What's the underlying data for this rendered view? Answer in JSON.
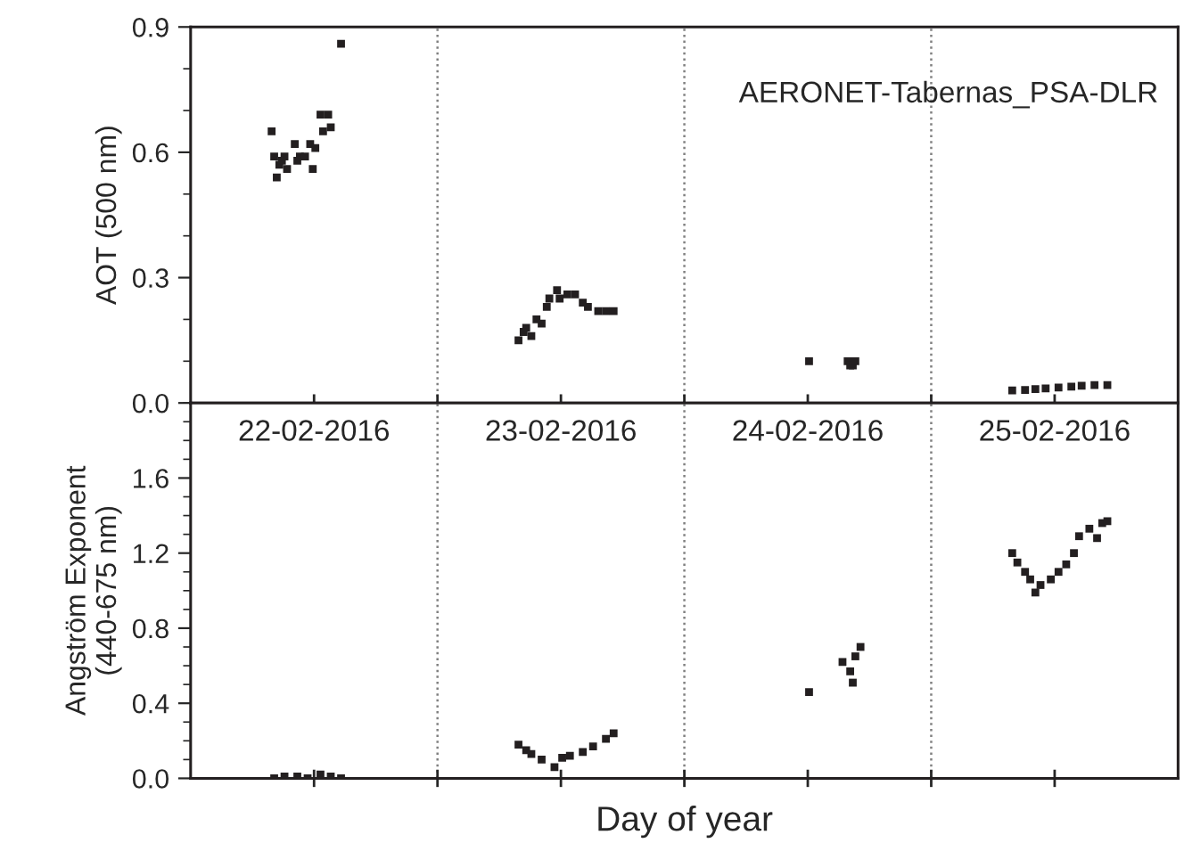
{
  "chart_data": [
    {
      "type": "scatter",
      "ylabel": "AOT (500 nm)",
      "annotations": [
        "AERONET-Tabernas_PSA-DLR"
      ],
      "categories": [
        null,
        null,
        null,
        null,
        null,
        null,
        null,
        null,
        null,
        null,
        null,
        null,
        null,
        null,
        null,
        null,
        null,
        null,
        null,
        null,
        null,
        null,
        null,
        null,
        null,
        null,
        null,
        null,
        null,
        null,
        null,
        null,
        null,
        null,
        null,
        null,
        null,
        null,
        null,
        null,
        null,
        null,
        null,
        null,
        null,
        null,
        null,
        null,
        null,
        null,
        null,
        null,
        null,
        null,
        null,
        null,
        null,
        null,
        null,
        null,
        null,
        null,
        null,
        null,
        null,
        null,
        null,
        null,
        null,
        null,
        null,
        null,
        null,
        null,
        null,
        null,
        null,
        null,
        null,
        null,
        null,
        null,
        null,
        null,
        null,
        null,
        null,
        null,
        null,
        null,
        null,
        null,
        null,
        null,
        null,
        null,
        null,
        null,
        null,
        null,
        null,
        null,
        null,
        null,
        null,
        null,
        null,
        null,
        null,
        null,
        null,
        null,
        null,
        null,
        null,
        null,
        null,
        null,
        null,
        null,
        null,
        null,
        null,
        null,
        null,
        null,
        null,
        null,
        null,
        null,
        null,
        null,
        null,
        null,
        null,
        null,
        null,
        null,
        null,
        null,
        null,
        null,
        null,
        null,
        null,
        null,
        null,
        null,
        null,
        null,
        null,
        null,
        null,
        null,
        null,
        null,
        null,
        null,
        null,
        null,
        null,
        null,
        null,
        null,
        null,
        null,
        null,
        null,
        null,
        null,
        null,
        null,
        null,
        null,
        null,
        null,
        null,
        null,
        null,
        null,
        null,
        null,
        null,
        null,
        null,
        null,
        null,
        null,
        null,
        null,
        null,
        null,
        null,
        null,
        null,
        null,
        null,
        null,
        null,
        null,
        null,
        null,
        null,
        null,
        null,
        null,
        null,
        null,
        null,
        null,
        null,
        null,
        null,
        null,
        null,
        null,
        null,
        null,
        null,
        null,
        null,
        null,
        null,
        null,
        null,
        null,
        null,
        null,
        null,
        null,
        null,
        null,
        null,
        null,
        null,
        null,
        null,
        null,
        null,
        null,
        null,
        null,
        null,
        null,
        null,
        null,
        null,
        null,
        null,
        null,
        null,
        null,
        null,
        null,
        null,
        null,
        null,
        null,
        null,
        null,
        null,
        null,
        null,
        null,
        null,
        null,
        null,
        null,
        null,
        null,
        null,
        null,
        null,
        null,
        null,
        null,
        null,
        null,
        null,
        null,
        null,
        null,
        null,
        null,
        null,
        null,
        null,
        null,
        null,
        null,
        null,
        null,
        null,
        null,
        null,
        null,
        null,
        null,
        null,
        null,
        null,
        null,
        null,
        null,
        null,
        null,
        null,
        null,
        null,
        null,
        null,
        null,
        null,
        null,
        null,
        null,
        null,
        null,
        null,
        null,
        null,
        null,
        null,
        null,
        null,
        null,
        null,
        null,
        null,
        null,
        null,
        null,
        null,
        null,
        null,
        null,
        null,
        null,
        null,
        null,
        null,
        null,
        null,
        null,
        null,
        null,
        null,
        null,
        null,
        null,
        null,
        null,
        null,
        null,
        null,
        null,
        null,
        null,
        null,
        null,
        null,
        null,
        null,
        null,
        null,
        null,
        null,
        null,
        null,
        null,
        null,
        null,
        null,
        null,
        null,
        null,
        null,
        null,
        null,
        null,
        null,
        null,
        null,
        null
      ],
      "ylim": [
        0,
        0.9
      ],
      "yticks": [
        {
          "value": 0,
          "label": "0.0"
        },
        0.3,
        0.6,
        0.9
      ],
      "tick_labels": "y",
      "marker": "square",
      "grid": false,
      "series": [
        {
          "color": "#231f20",
          "values": [
            null,
            null,
            null,
            null,
            null,
            null,
            null,
            null,
            null,
            null,
            null,
            null,
            null,
            null,
            null,
            null,
            null,
            null,
            null,
            null,
            null,
            null,
            null,
            null,
            null,
            null,
            null,
            null,
            null,
            null,
            null,
            0.65,
            0.59,
            0.54,
            0.57,
            0.58,
            0.59,
            0.56,
            null,
            null,
            0.62,
            0.58,
            0.59,
            null,
            0.59,
            null,
            0.62,
            0.56,
            0.61,
            null,
            0.69,
            0.65,
            null,
            0.69,
            0.66,
            null,
            null,
            null,
            0.86,
            null,
            null,
            null,
            null,
            null,
            null,
            null,
            null,
            null,
            null,
            null,
            null,
            null,
            null,
            null,
            null,
            null,
            null,
            null,
            null,
            null,
            null,
            null,
            null,
            null,
            null,
            null,
            null,
            null,
            null,
            null,
            null,
            null,
            null,
            null,
            null,
            null,
            null,
            null,
            null,
            null,
            null,
            null,
            null,
            null,
            null,
            null,
            null,
            null,
            null,
            null,
            null,
            null,
            null,
            null,
            null,
            null,
            null,
            null,
            null,
            null,
            null,
            null,
            null,
            null,
            null,
            null,
            null,
            0.15,
            null,
            0.17,
            0.18,
            null,
            0.16,
            null,
            0.2,
            null,
            0.19,
            null,
            0.23,
            0.25,
            null,
            null,
            0.27,
            0.25,
            null,
            null,
            0.26,
            null,
            null,
            0.26,
            null,
            null,
            0.24,
            null,
            0.23,
            null,
            null,
            null,
            0.22,
            null,
            null,
            0.22,
            null,
            null,
            0.22,
            null,
            null,
            null,
            null,
            null,
            null,
            null,
            null,
            null,
            null,
            null,
            null,
            null,
            null,
            null,
            null,
            null,
            null,
            null,
            null,
            null,
            null,
            null,
            null,
            null,
            null,
            null,
            null,
            null,
            null,
            null,
            null,
            null,
            null,
            null,
            null,
            null,
            null,
            null,
            null,
            null,
            null,
            null,
            null,
            null,
            null,
            null,
            null,
            null,
            null,
            null,
            null,
            null,
            null,
            null,
            null,
            null,
            null,
            null,
            null,
            null,
            null,
            null,
            null,
            null,
            null,
            null,
            null,
            null,
            null,
            null,
            null,
            null,
            null,
            null,
            0.1,
            null,
            null,
            null,
            null,
            null,
            null,
            null,
            null,
            null,
            null,
            null,
            null,
            null,
            null,
            0.1,
            0.09,
            0.09,
            0.1,
            null,
            null,
            null,
            null,
            null,
            null,
            null,
            null,
            null,
            null,
            null,
            null,
            null,
            null,
            null,
            null,
            null,
            null,
            null,
            null,
            null,
            null,
            null,
            null,
            null,
            null,
            null,
            null,
            null,
            null,
            null,
            null,
            null,
            null,
            null,
            null,
            null,
            null,
            null,
            null,
            null,
            null,
            null,
            null,
            null,
            null,
            null,
            null,
            null,
            null,
            null,
            null,
            null,
            null,
            null,
            null,
            null,
            null,
            null,
            null,
            0.03,
            null,
            null,
            null,
            null,
            0.031,
            null,
            null,
            null,
            0.033,
            null,
            null,
            null,
            0.035,
            null,
            null,
            null,
            null,
            0.037,
            null,
            null,
            null,
            null,
            0.039,
            null,
            null,
            null,
            0.041,
            null,
            null,
            null,
            null,
            0.043,
            null,
            null,
            null,
            null,
            0.043,
            null,
            null,
            null,
            null,
            null,
            null,
            null,
            null,
            null,
            null,
            null,
            null,
            null,
            null,
            null,
            null,
            null,
            null,
            null,
            null,
            null,
            null,
            null,
            null,
            null,
            null,
            null
          ]
        }
      ]
    },
    {
      "type": "scatter",
      "xlabel": "Day of year",
      "ylabel": "Angström Exponent\n(440-675 nm)",
      "annotations": [
        "22-02-2016",
        "23-02-2016",
        "24-02-2016",
        "25-02-2016"
      ],
      "categories": [
        null,
        null,
        null,
        null,
        null,
        null,
        null,
        null,
        null,
        null,
        null,
        null,
        null,
        null,
        null,
        null,
        null,
        null,
        null,
        null,
        null,
        null,
        null,
        null,
        null,
        null,
        null,
        null,
        null,
        null,
        null,
        null,
        null,
        null,
        null,
        null,
        null,
        null,
        null,
        null,
        null,
        null,
        null,
        null,
        null,
        null,
        null,
        null,
        null,
        null,
        null,
        null,
        null,
        null,
        null,
        null,
        null,
        null,
        null,
        null,
        null,
        null,
        null,
        null,
        null,
        null,
        null,
        null,
        null,
        null,
        null,
        null,
        null,
        null,
        null,
        null,
        null,
        null,
        null,
        null,
        null,
        null,
        null,
        null,
        null,
        null,
        null,
        null,
        null,
        null,
        null,
        null,
        null,
        null,
        null,
        null,
        null,
        null,
        null,
        null,
        null,
        null,
        null,
        null,
        null,
        null,
        null,
        null,
        null,
        null,
        null,
        null,
        null,
        null,
        null,
        null,
        null,
        null,
        null,
        null,
        null,
        null,
        null,
        null,
        null,
        null,
        null,
        null,
        null,
        null,
        null,
        null,
        null,
        null,
        null,
        null,
        null,
        null,
        null,
        null,
        null,
        null,
        null,
        null,
        null,
        null,
        null,
        null,
        null,
        null,
        null,
        null,
        null,
        null,
        null,
        null,
        null,
        null,
        null,
        null,
        null,
        null,
        null,
        null,
        null,
        null,
        null,
        null,
        null,
        null,
        null,
        null,
        null,
        null,
        null,
        null,
        null,
        null,
        null,
        null,
        null,
        null,
        null,
        null,
        null,
        null,
        null,
        null,
        null,
        null,
        null,
        null,
        null,
        null,
        null,
        null,
        null,
        null,
        null,
        null,
        null,
        null,
        null,
        null,
        null,
        null,
        null,
        null,
        null,
        null,
        null,
        null,
        null,
        null,
        null,
        null,
        null,
        null,
        null,
        null,
        null,
        null,
        null,
        null,
        null,
        null,
        null,
        null,
        null,
        null,
        null,
        null,
        null,
        null,
        null,
        null,
        null,
        null,
        null,
        null,
        null,
        null,
        null,
        null,
        null,
        null,
        null,
        null,
        null,
        null,
        null,
        null,
        null,
        null,
        null,
        null,
        null,
        null,
        null,
        null,
        null,
        null,
        null,
        null,
        null,
        null,
        null,
        null,
        null,
        null,
        null,
        null,
        null,
        null,
        null,
        null,
        null,
        null,
        null,
        null,
        null,
        null,
        null,
        null,
        null,
        null,
        null,
        null,
        null,
        null,
        null,
        null,
        null,
        null,
        null,
        null,
        null,
        null,
        null,
        null,
        null,
        null,
        null,
        null,
        null,
        null,
        null,
        null,
        null,
        null,
        null,
        null,
        null,
        null,
        null,
        null,
        null,
        null,
        null,
        null,
        null,
        null,
        null,
        null,
        null,
        null,
        null,
        null,
        null,
        null,
        null,
        null,
        null,
        null,
        null,
        null,
        null,
        null,
        null,
        null,
        null,
        null,
        null,
        null,
        null,
        null,
        null,
        null,
        null,
        null,
        null,
        null,
        null,
        null,
        null,
        null,
        null,
        null,
        null,
        null,
        null,
        null,
        null,
        null,
        null,
        null,
        null,
        null,
        null,
        null,
        null,
        null,
        null,
        null,
        null,
        null,
        null,
        null,
        null,
        null,
        null,
        null,
        null,
        null
      ],
      "ylim": [
        0,
        2.0
      ],
      "yticks": [
        {
          "value": 0,
          "label": "0.0"
        },
        0.4,
        0.8,
        1.2,
        1.6
      ],
      "tick_labels": "y",
      "marker": "square",
      "grid": false,
      "series": [
        {
          "color": "#231f20",
          "values": [
            null,
            null,
            null,
            null,
            null,
            null,
            null,
            null,
            null,
            null,
            null,
            null,
            null,
            null,
            null,
            null,
            null,
            null,
            null,
            null,
            null,
            null,
            null,
            null,
            null,
            null,
            null,
            null,
            null,
            null,
            null,
            null,
            0,
            null,
            null,
            null,
            0.01,
            null,
            null,
            null,
            null,
            0.01,
            null,
            null,
            null,
            0,
            null,
            null,
            null,
            null,
            0.02,
            null,
            null,
            null,
            0.01,
            null,
            null,
            null,
            0,
            null,
            null,
            null,
            null,
            null,
            null,
            null,
            null,
            null,
            null,
            null,
            null,
            null,
            null,
            null,
            null,
            null,
            null,
            null,
            null,
            null,
            null,
            null,
            null,
            null,
            null,
            null,
            null,
            null,
            null,
            null,
            null,
            null,
            null,
            null,
            null,
            null,
            null,
            null,
            null,
            null,
            null,
            null,
            null,
            null,
            null,
            null,
            null,
            null,
            null,
            null,
            null,
            null,
            null,
            null,
            null,
            null,
            null,
            null,
            null,
            null,
            null,
            null,
            null,
            null,
            null,
            null,
            null,
            0.18,
            null,
            null,
            0.15,
            null,
            0.13,
            null,
            null,
            null,
            0.1,
            null,
            null,
            null,
            null,
            0.06,
            null,
            null,
            0.11,
            null,
            null,
            0.12,
            null,
            null,
            null,
            null,
            0.14,
            null,
            null,
            null,
            0.17,
            null,
            null,
            null,
            null,
            0.21,
            null,
            null,
            0.24,
            null,
            null,
            null,
            null,
            null,
            null,
            null,
            null,
            null,
            null,
            null,
            null,
            null,
            null,
            null,
            null,
            null,
            null,
            null,
            null,
            null,
            null,
            null,
            null,
            null,
            null,
            null,
            null,
            null,
            null,
            null,
            null,
            null,
            null,
            null,
            null,
            null,
            null,
            null,
            null,
            null,
            null,
            null,
            null,
            null,
            null,
            null,
            null,
            null,
            null,
            null,
            null,
            null,
            null,
            null,
            null,
            null,
            null,
            null,
            null,
            null,
            null,
            null,
            null,
            null,
            null,
            null,
            null,
            null,
            null,
            null,
            null,
            null,
            null,
            null,
            0.46,
            null,
            null,
            null,
            null,
            null,
            null,
            null,
            null,
            null,
            null,
            null,
            null,
            0.62,
            null,
            null,
            0.57,
            0.51,
            0.65,
            null,
            0.7,
            null,
            null,
            null,
            null,
            null,
            null,
            null,
            null,
            null,
            null,
            null,
            null,
            null,
            null,
            null,
            null,
            null,
            null,
            null,
            null,
            null,
            null,
            null,
            null,
            null,
            null,
            null,
            null,
            null,
            null,
            null,
            null,
            null,
            null,
            null,
            null,
            null,
            null,
            null,
            null,
            null,
            null,
            null,
            null,
            null,
            null,
            null,
            null,
            null,
            null,
            null,
            null,
            null,
            null,
            null,
            null,
            null,
            null,
            1.2,
            null,
            1.15,
            null,
            null,
            1.1,
            null,
            1.06,
            null,
            0.99,
            null,
            1.03,
            null,
            null,
            null,
            1.06,
            null,
            null,
            1.1,
            null,
            null,
            1.14,
            null,
            null,
            1.2,
            null,
            1.29,
            null,
            null,
            null,
            1.33,
            null,
            null,
            1.28,
            null,
            1.36,
            null,
            1.37,
            null,
            null,
            null,
            null,
            null,
            null,
            null,
            null,
            null,
            null,
            null,
            null,
            null,
            null,
            null,
            null,
            null,
            null,
            null,
            null,
            null,
            null,
            null,
            null,
            null,
            null,
            null
          ]
        }
      ]
    }
  ]
}
